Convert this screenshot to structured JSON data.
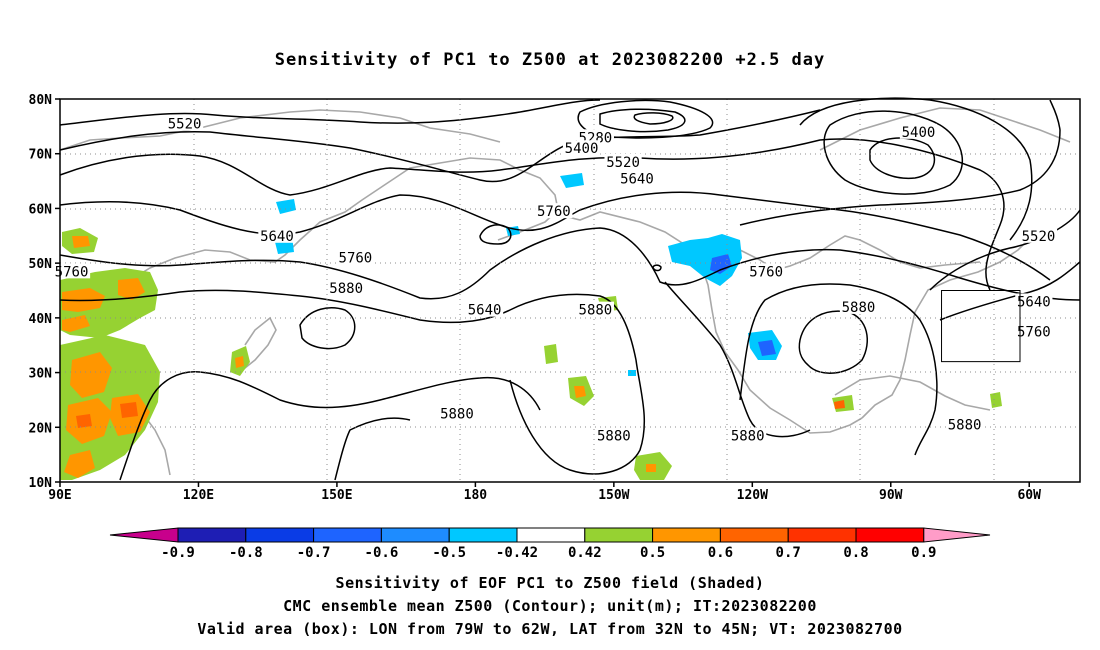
{
  "title": "Sensitivity of PC1 to Z500 at 2023082200 +2.5 day",
  "footer": {
    "line1": "Sensitivity of EOF PC1 to Z500 field (Shaded)",
    "line2": "CMC ensemble mean Z500 (Contour); unit(m); IT:2023082200",
    "line3": "Valid area (box): LON from 79W to 62W, LAT from 32N to 45N; VT: 2023082700"
  },
  "axes": {
    "lat_ticks": [
      "80N",
      "70N",
      "60N",
      "50N",
      "40N",
      "30N",
      "20N",
      "10N"
    ],
    "lat_values": [
      80,
      70,
      60,
      50,
      40,
      30,
      20,
      10
    ],
    "lon_ticks": [
      "90E",
      "120E",
      "150E",
      "180",
      "150W",
      "120W",
      "90W",
      "60W"
    ],
    "lon_values": [
      90,
      120,
      150,
      180,
      210,
      240,
      270,
      300
    ],
    "lon_range": [
      90,
      311
    ],
    "lat_range": [
      10,
      80
    ],
    "grid": "dotted"
  },
  "valid_box": {
    "lon_west": -79,
    "lon_east": -62,
    "lat_south": 32,
    "lat_north": 45
  },
  "colorbar": {
    "labels": [
      "-0.9",
      "-0.8",
      "-0.7",
      "-0.6",
      "-0.5",
      "-0.42",
      "0.42",
      "0.5",
      "0.6",
      "0.7",
      "0.8",
      "0.9"
    ],
    "colors": [
      "#c8008c",
      "#1e1eb4",
      "#0a3ce6",
      "#1e64ff",
      "#1e8cff",
      "#00c8ff",
      "#ffffff",
      "#96d232",
      "#ff9600",
      "#ff6400",
      "#ff3200",
      "#ff0000",
      "#ff9cc8"
    ]
  },
  "contour_labels": [
    {
      "text": "5520",
      "lon": 117,
      "lat": 75.5
    },
    {
      "text": "5280",
      "lon": 206,
      "lat": 73
    },
    {
      "text": "5400",
      "lon": 203,
      "lat": 71
    },
    {
      "text": "5520",
      "lon": 212,
      "lat": 68.5
    },
    {
      "text": "5640",
      "lon": 215,
      "lat": 65.5
    },
    {
      "text": "5760",
      "lon": 197,
      "lat": 59.5
    },
    {
      "text": "5400",
      "lon": 276,
      "lat": 74
    },
    {
      "text": "5520",
      "lon": 302,
      "lat": 55
    },
    {
      "text": "5640",
      "lon": 137,
      "lat": 55
    },
    {
      "text": "5760",
      "lon": 92.5,
      "lat": 48.5
    },
    {
      "text": "5760",
      "lon": 154,
      "lat": 51
    },
    {
      "text": "5880",
      "lon": 152,
      "lat": 45.5
    },
    {
      "text": "5640",
      "lon": 182,
      "lat": 41.5
    },
    {
      "text": "5880",
      "lon": 206,
      "lat": 41.5
    },
    {
      "text": "5760",
      "lon": 243,
      "lat": 48.5
    },
    {
      "text": "5880",
      "lon": 263,
      "lat": 42
    },
    {
      "text": "5640",
      "lon": 301,
      "lat": 43
    },
    {
      "text": "5760",
      "lon": 301,
      "lat": 37.5
    },
    {
      "text": "5880",
      "lon": 176,
      "lat": 22.5
    },
    {
      "text": "5880",
      "lon": 210,
      "lat": 18.5
    },
    {
      "text": "5880",
      "lon": 239,
      "lat": 18.5
    },
    {
      "text": "5880",
      "lon": 286,
      "lat": 20.5
    }
  ]
}
